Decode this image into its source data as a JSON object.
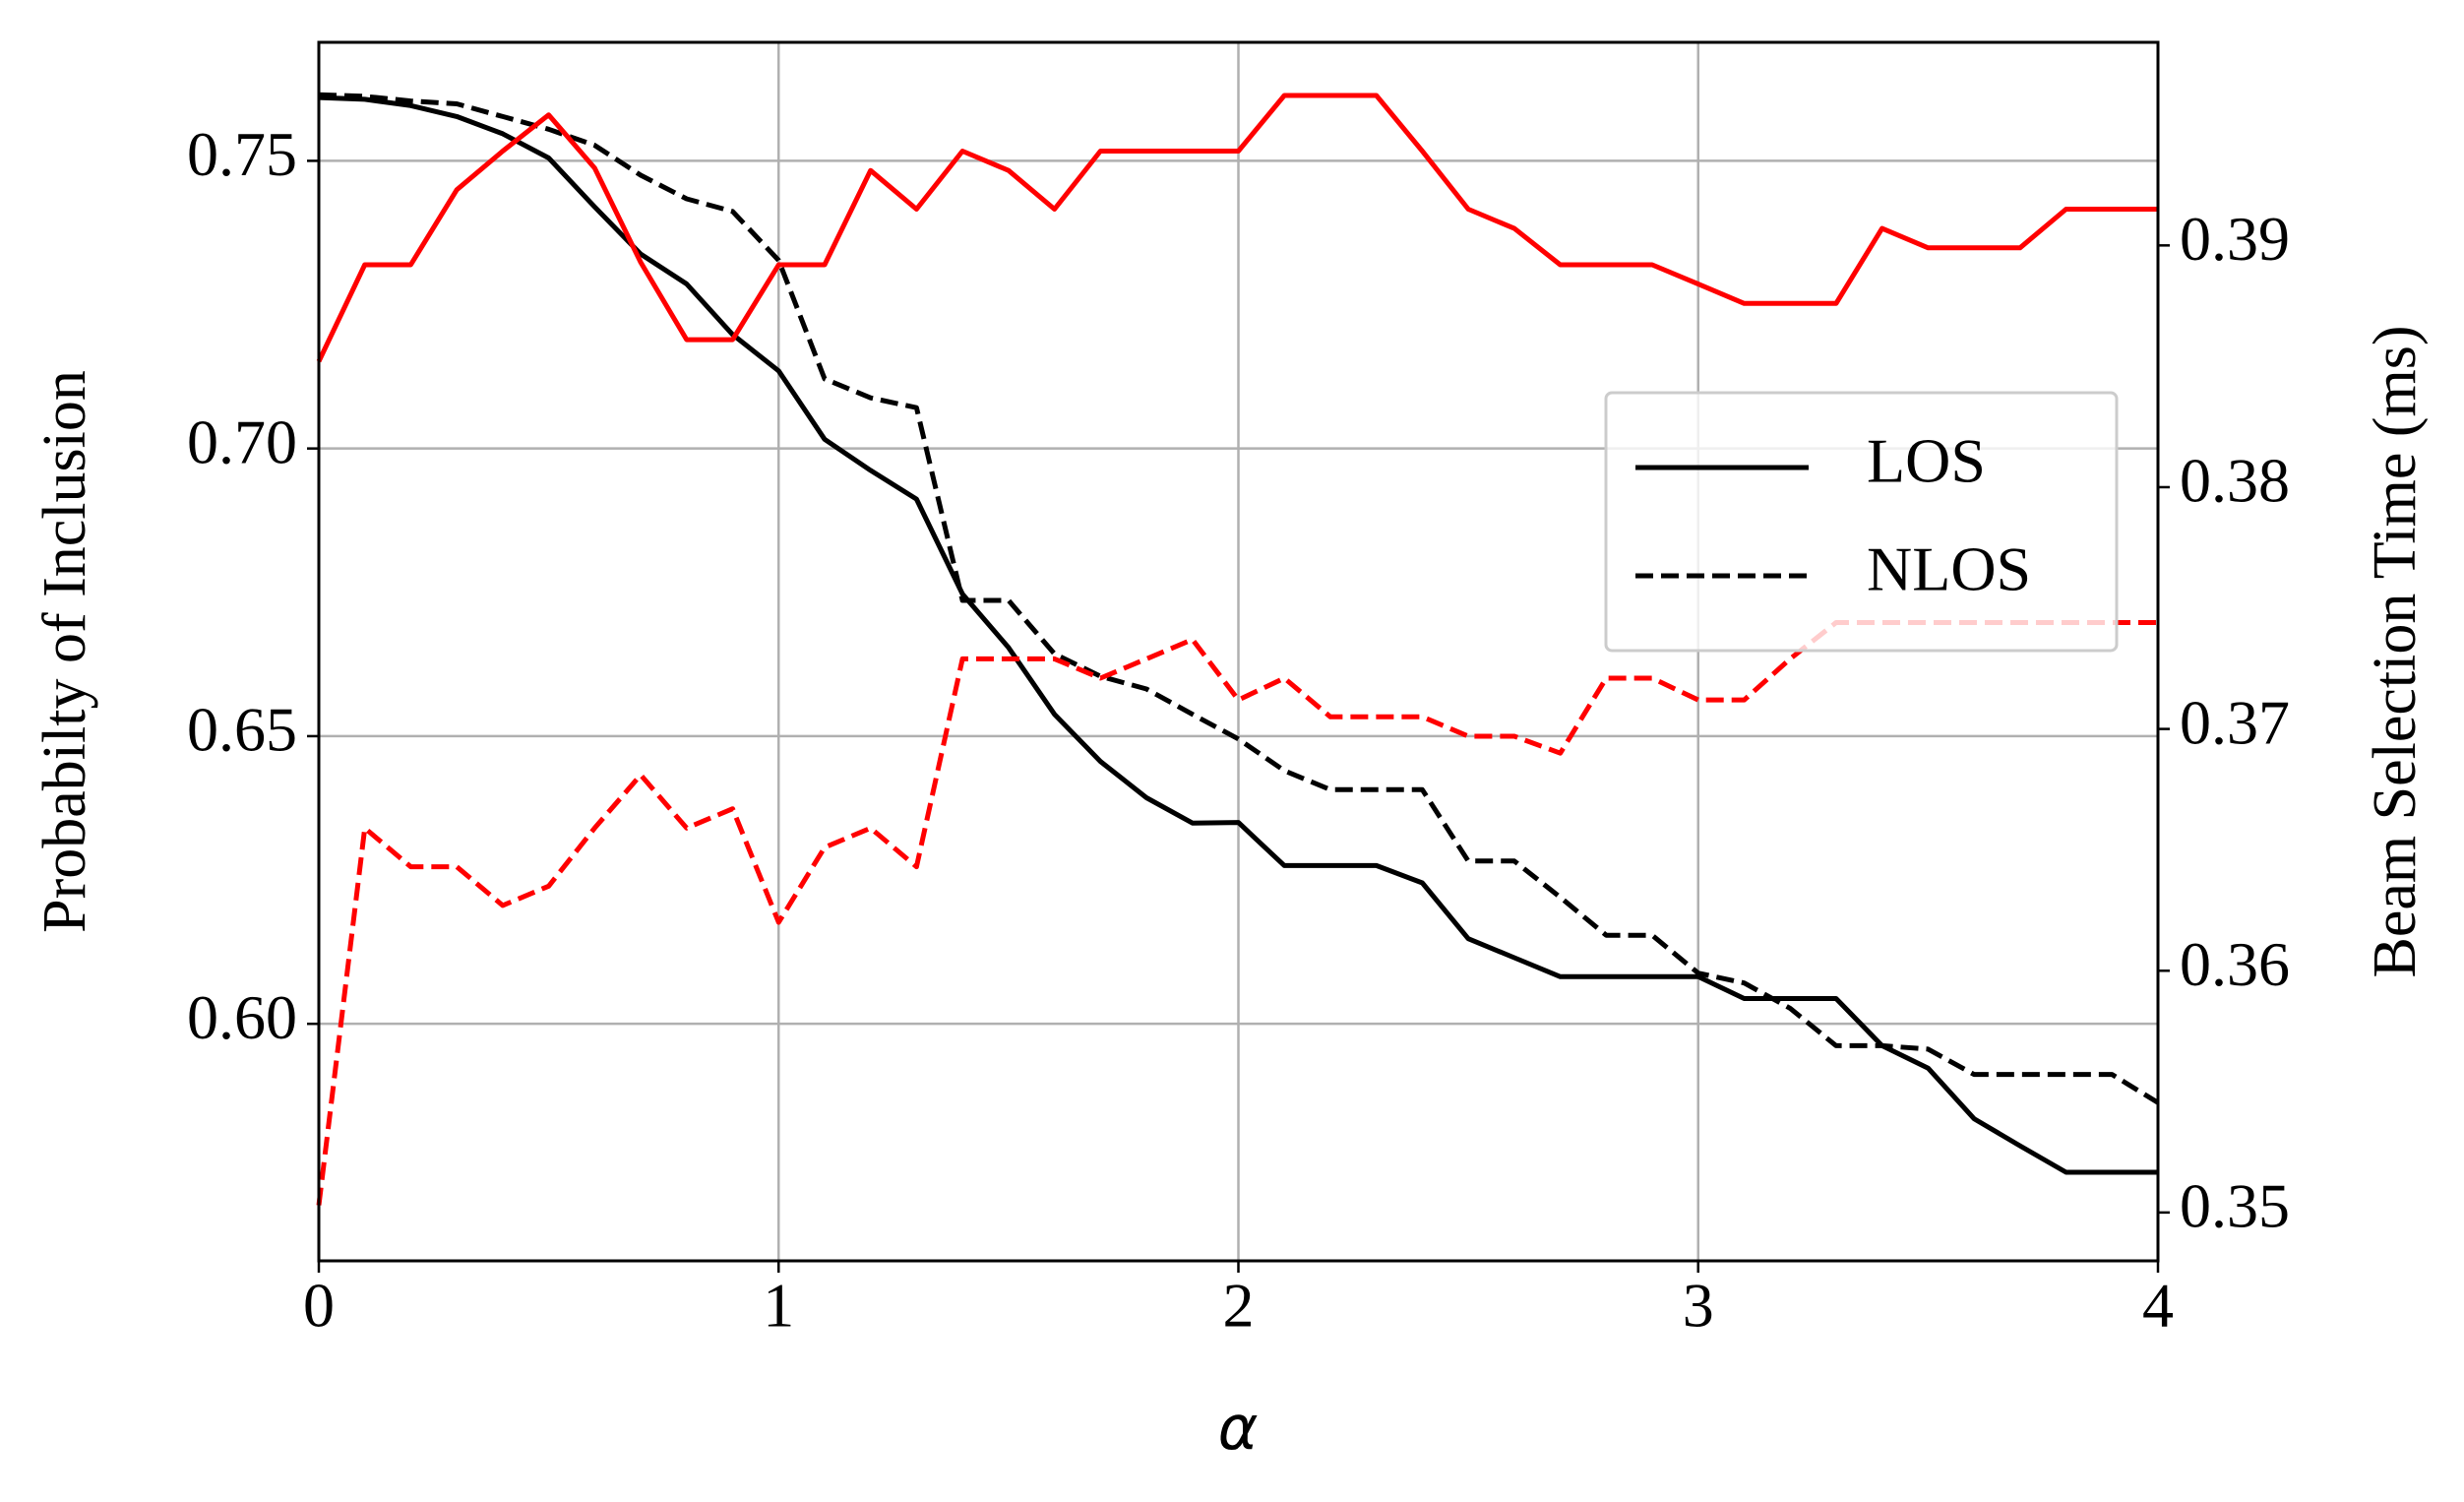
{
  "chart_data": {
    "type": "line",
    "xlabel": "α",
    "ylabel": "Probabilty of Inclusion",
    "y2label": "Beam Selection Time (ms)",
    "x": [
      0,
      0.1,
      0.2,
      0.3,
      0.4,
      0.5,
      0.6,
      0.7,
      0.8,
      0.9,
      1,
      1.1,
      1.2,
      1.3,
      1.4,
      1.5,
      1.6,
      1.7,
      1.8,
      1.9,
      2,
      2.1,
      2.2,
      2.3,
      2.4,
      2.5,
      2.6,
      2.7,
      2.8,
      2.9,
      3,
      3.1,
      3.2,
      3.3,
      3.4,
      3.5,
      3.6,
      3.7,
      3.8,
      3.9,
      4
    ],
    "series": [
      {
        "name": "LOS",
        "color": "#000000",
        "dashed": false,
        "values": [
          0.761,
          0.7607,
          0.7596,
          0.7577,
          0.7547,
          0.7505,
          0.742,
          0.7338,
          0.7286,
          0.7198,
          0.7135,
          0.7016,
          0.6962,
          0.6912,
          0.6747,
          0.6654,
          0.6538,
          0.6456,
          0.6393,
          0.6349,
          0.635,
          0.6275,
          0.6275,
          0.6275,
          0.6245,
          0.6148,
          0.6115,
          0.6082,
          0.6082,
          0.6082,
          0.6082,
          0.6044,
          0.6044,
          0.6044,
          0.5962,
          0.5923,
          0.5835,
          0.5788,
          0.5742,
          0.5742,
          0.5742
        ]
      },
      {
        "name": "NLOS",
        "color": "#000000",
        "dashed": true,
        "values": [
          0.7615,
          0.7612,
          0.7604,
          0.7599,
          0.7577,
          0.7555,
          0.7527,
          0.7475,
          0.7434,
          0.7412,
          0.7327,
          0.7121,
          0.7088,
          0.7071,
          0.6736,
          0.6736,
          0.6643,
          0.6604,
          0.6582,
          0.6538,
          0.6495,
          0.644,
          0.6407,
          0.6407,
          0.6407,
          0.6283,
          0.6283,
          0.622,
          0.6154,
          0.6154,
          0.6088,
          0.6071,
          0.6027,
          0.5962,
          0.5962,
          0.5956,
          0.5912,
          0.5912,
          0.5912,
          0.5912,
          0.5863
        ]
      },
      {
        "color": "#ff0000",
        "dashed": false,
        "axis": "y2",
        "values": [
          0.3852,
          0.3892,
          0.3892,
          0.3923,
          0.3939,
          0.3954,
          0.3932,
          0.3893,
          0.3861,
          0.3861,
          0.3892,
          0.3892,
          0.3931,
          0.3915,
          0.3939,
          0.3931,
          0.3915,
          0.3939,
          0.3939,
          0.3939,
          0.3939,
          0.3962,
          0.3962,
          0.3962,
          0.3939,
          0.3915,
          0.3907,
          0.3892,
          0.3892,
          0.3892,
          0.3884,
          0.3876,
          0.3876,
          0.3876,
          0.3907,
          0.3899,
          0.3899,
          0.3899,
          0.3915,
          0.3915,
          0.3915
        ]
      },
      {
        "color": "#ff0000",
        "dashed": true,
        "axis": "y2",
        "values": [
          0.3503,
          0.3659,
          0.3643,
          0.3643,
          0.3627,
          0.3635,
          0.3659,
          0.3681,
          0.3659,
          0.3667,
          0.362,
          0.3651,
          0.3659,
          0.3643,
          0.3729,
          0.3729,
          0.3729,
          0.3721,
          0.3729,
          0.3737,
          0.3712,
          0.3721,
          0.3705,
          0.3705,
          0.3705,
          0.3697,
          0.3697,
          0.369,
          0.3721,
          0.3721,
          0.3712,
          0.3712,
          0.3729,
          0.3744,
          0.3744,
          0.3744,
          0.3744,
          0.3744,
          0.3744,
          0.3744,
          0.3744
        ]
      }
    ],
    "xlim": [
      0,
      4
    ],
    "xticks": [
      0,
      1,
      2,
      3,
      4
    ],
    "ylim": [
      0.5588,
      0.7706
    ],
    "yticks": [
      {
        "value": 0.6,
        "label": "0.60"
      },
      0.65,
      {
        "value": 0.7,
        "label": "0.70"
      },
      0.75
    ],
    "y2lim": [
      0.348,
      0.3984
    ],
    "y2ticks": [
      0.35,
      0.36,
      0.37,
      0.38,
      0.39
    ],
    "y2color": "#ff0000",
    "grid": true,
    "legend": "center right"
  }
}
